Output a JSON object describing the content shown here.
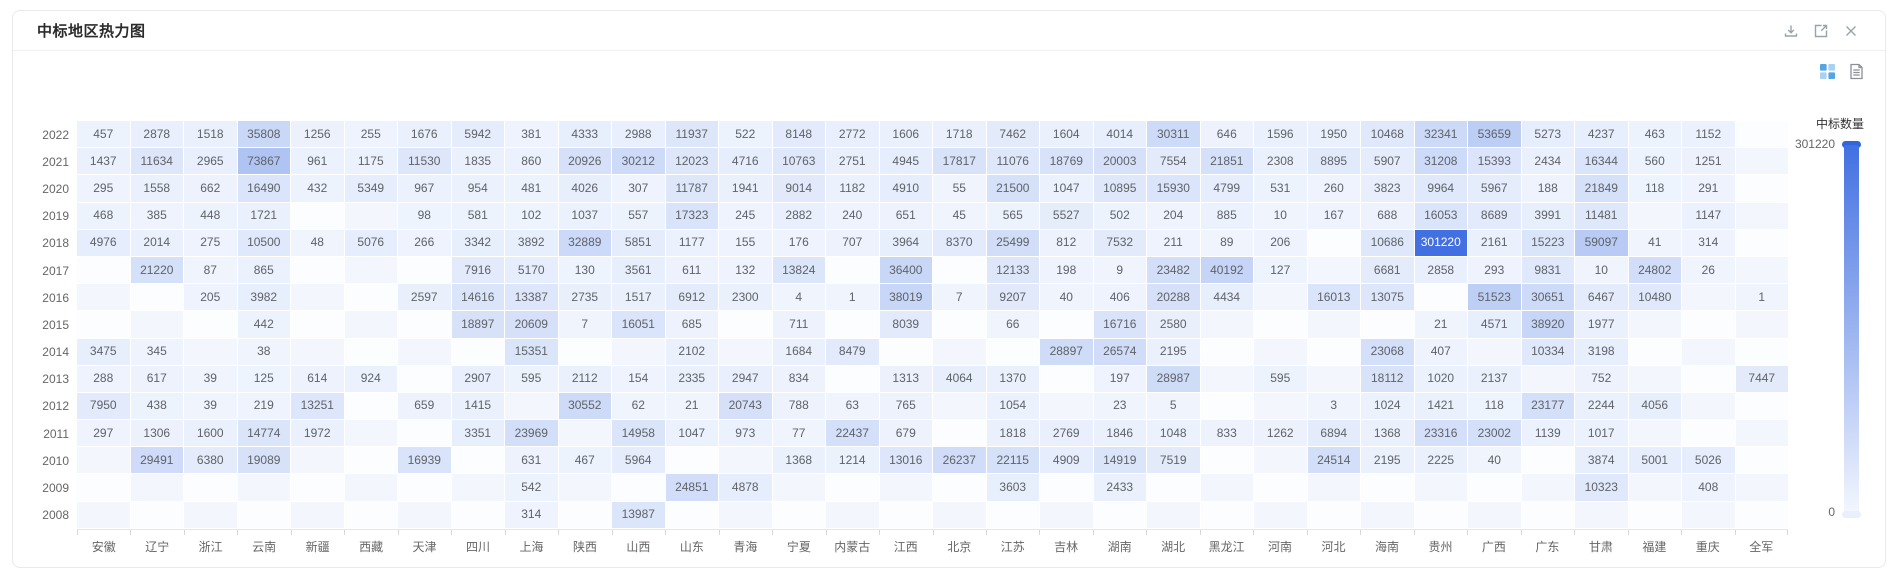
{
  "window": {
    "title": "中标地区热力图",
    "header_icons": [
      {
        "name": "download-icon"
      },
      {
        "name": "open-in-new-icon"
      },
      {
        "name": "close-icon"
      }
    ],
    "toolbar_icons": [
      {
        "name": "chart-view-icon",
        "active": true
      },
      {
        "name": "table-view-icon",
        "active": false
      }
    ]
  },
  "chart_data": {
    "type": "heatmap",
    "title": "中标地区热力图",
    "legend": {
      "title": "中标数量",
      "position": "right",
      "max": 301220,
      "min": 0,
      "max_label": "301220",
      "min_label": "0"
    },
    "colors": {
      "min_cell": "#eff4fd",
      "max_cell": "#4270e2",
      "empty_even": "#f3f6fc",
      "empty_odd": "#fcfdff",
      "label": "#5f6368",
      "label_on_dark": "#ffffff",
      "toolbar_active": "#55a4e4"
    },
    "x_categories": [
      "安徽",
      "辽宁",
      "浙江",
      "云南",
      "新疆",
      "西藏",
      "天津",
      "四川",
      "上海",
      "陕西",
      "山西",
      "山东",
      "青海",
      "宁夏",
      "内蒙古",
      "江西",
      "北京",
      "江苏",
      "吉林",
      "湖南",
      "湖北",
      "黑龙江",
      "河南",
      "河北",
      "海南",
      "贵州",
      "广西",
      "广东",
      "甘肃",
      "福建",
      "重庆",
      "全军"
    ],
    "y_categories": [
      "2022",
      "2021",
      "2020",
      "2019",
      "2018",
      "2017",
      "2016",
      "2015",
      "2014",
      "2013",
      "2012",
      "2011",
      "2010",
      "2009",
      "2008"
    ],
    "rows": [
      {
        "year": "2022",
        "values": [
          457,
          2878,
          1518,
          35808,
          1256,
          255,
          1676,
          5942,
          381,
          4333,
          2988,
          11937,
          522,
          8148,
          2772,
          1606,
          1718,
          7462,
          1604,
          4014,
          30311,
          646,
          1596,
          1950,
          10468,
          32341,
          53659,
          5273,
          4237,
          463,
          1152,
          null
        ]
      },
      {
        "year": "2021",
        "values": [
          1437,
          11634,
          2965,
          73867,
          961,
          1175,
          11530,
          1835,
          860,
          20926,
          30212,
          12023,
          4716,
          10763,
          2751,
          4945,
          17817,
          11076,
          18769,
          20003,
          7554,
          21851,
          2308,
          8895,
          5907,
          31208,
          15393,
          2434,
          16344,
          560,
          1251,
          null
        ]
      },
      {
        "year": "2020",
        "values": [
          295,
          1558,
          662,
          16490,
          432,
          5349,
          967,
          954,
          481,
          4026,
          307,
          11787,
          1941,
          9014,
          1182,
          4910,
          55,
          21500,
          1047,
          10895,
          15930,
          4799,
          531,
          260,
          3823,
          9964,
          5967,
          188,
          21849,
          118,
          291,
          null
        ]
      },
      {
        "year": "2019",
        "values": [
          468,
          385,
          448,
          1721,
          null,
          null,
          98,
          581,
          102,
          1037,
          557,
          17323,
          245,
          2882,
          240,
          651,
          45,
          565,
          5527,
          502,
          204,
          885,
          10,
          167,
          688,
          16053,
          8689,
          3991,
          11481,
          null,
          1147,
          null
        ]
      },
      {
        "year": "2018",
        "values": [
          4976,
          2014,
          275,
          10500,
          48,
          5076,
          266,
          3342,
          3892,
          32889,
          5851,
          1177,
          155,
          176,
          707,
          3964,
          8370,
          25499,
          812,
          7532,
          211,
          89,
          206,
          null,
          10686,
          301220,
          2161,
          15223,
          59097,
          41,
          314,
          null
        ]
      },
      {
        "year": "2017",
        "values": [
          null,
          21220,
          87,
          865,
          null,
          null,
          null,
          7916,
          5170,
          130,
          3561,
          611,
          132,
          13824,
          null,
          36400,
          null,
          12133,
          198,
          9,
          23482,
          40192,
          127,
          null,
          6681,
          2858,
          293,
          9831,
          10,
          24802,
          26,
          null
        ]
      },
      {
        "year": "2016",
        "values": [
          null,
          null,
          205,
          3982,
          null,
          null,
          2597,
          14616,
          13387,
          2735,
          1517,
          6912,
          2300,
          4,
          1,
          38019,
          7,
          9207,
          40,
          406,
          20288,
          4434,
          null,
          16013,
          13075,
          null,
          51523,
          30651,
          6467,
          10480,
          null,
          1
        ]
      },
      {
        "year": "2015",
        "values": [
          null,
          null,
          null,
          442,
          null,
          null,
          null,
          18897,
          20609,
          7,
          16051,
          685,
          null,
          711,
          null,
          8039,
          null,
          66,
          null,
          16716,
          2580,
          null,
          null,
          null,
          null,
          21,
          4571,
          38920,
          1977,
          null,
          null,
          null
        ]
      },
      {
        "year": "2014",
        "values": [
          3475,
          345,
          null,
          38,
          null,
          null,
          null,
          null,
          15351,
          null,
          null,
          2102,
          null,
          1684,
          8479,
          null,
          null,
          null,
          28897,
          26574,
          2195,
          null,
          null,
          null,
          23068,
          407,
          null,
          10334,
          3198,
          null,
          null,
          null
        ]
      },
      {
        "year": "2013",
        "values": [
          288,
          617,
          39,
          125,
          614,
          924,
          null,
          2907,
          595,
          2112,
          154,
          2335,
          2947,
          834,
          null,
          1313,
          4064,
          1370,
          null,
          197,
          28987,
          null,
          595,
          null,
          18112,
          1020,
          2137,
          null,
          752,
          null,
          null,
          7447
        ]
      },
      {
        "year": "2012",
        "values": [
          7950,
          438,
          39,
          219,
          13251,
          null,
          659,
          1415,
          null,
          30552,
          62,
          21,
          20743,
          788,
          63,
          765,
          null,
          1054,
          null,
          23,
          5,
          null,
          null,
          3,
          1024,
          1421,
          118,
          23177,
          2244,
          4056,
          null,
          null
        ]
      },
      {
        "year": "2011",
        "values": [
          297,
          1306,
          1600,
          14774,
          1972,
          null,
          null,
          3351,
          23969,
          null,
          14958,
          1047,
          973,
          77,
          22437,
          679,
          null,
          1818,
          2769,
          1846,
          1048,
          833,
          1262,
          6894,
          1368,
          23316,
          23002,
          1139,
          1017,
          null,
          null,
          null
        ]
      },
      {
        "year": "2010",
        "values": [
          null,
          29491,
          6380,
          19089,
          null,
          null,
          16939,
          null,
          631,
          467,
          5964,
          null,
          null,
          1368,
          1214,
          13016,
          26237,
          22115,
          4909,
          14919,
          7519,
          null,
          null,
          24514,
          2195,
          2225,
          40,
          null,
          3874,
          5001,
          5026,
          null
        ]
      },
      {
        "year": "2009",
        "values": [
          null,
          null,
          null,
          null,
          null,
          null,
          null,
          null,
          542,
          null,
          null,
          24851,
          4878,
          null,
          null,
          null,
          null,
          3603,
          null,
          2433,
          null,
          null,
          null,
          null,
          null,
          null,
          null,
          null,
          10323,
          null,
          408,
          null
        ]
      },
      {
        "year": "2008",
        "values": [
          null,
          null,
          null,
          null,
          null,
          null,
          null,
          null,
          314,
          null,
          13987,
          null,
          null,
          null,
          null,
          null,
          null,
          null,
          null,
          null,
          null,
          null,
          null,
          null,
          null,
          null,
          null,
          null,
          null,
          null,
          null,
          null
        ]
      }
    ]
  }
}
